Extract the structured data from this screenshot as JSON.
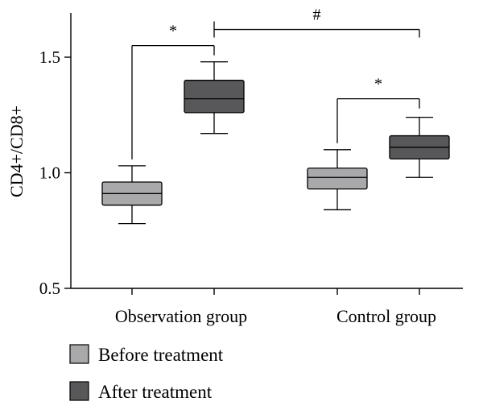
{
  "chart_data": {
    "type": "box",
    "ylabel": "CD4+/CD8+",
    "ylim": [
      0.5,
      1.7
    ],
    "yticks": [
      0.5,
      1.0,
      1.5
    ],
    "ytick_labels": [
      "0.5",
      "1.0",
      "1.5"
    ],
    "categories": [
      "Observation group",
      "Control group"
    ],
    "legend_position": "bottom-left",
    "series": [
      {
        "name": "Before treatment",
        "color": "#a9a9ab",
        "boxes": [
          {
            "whisker_low": 0.78,
            "q1": 0.86,
            "median": 0.91,
            "q3": 0.96,
            "whisker_high": 1.03
          },
          {
            "whisker_low": 0.84,
            "q1": 0.93,
            "median": 0.98,
            "q3": 1.02,
            "whisker_high": 1.1
          }
        ]
      },
      {
        "name": "After treatment",
        "color": "#58585a",
        "boxes": [
          {
            "whisker_low": 1.17,
            "q1": 1.26,
            "median": 1.32,
            "q3": 1.4,
            "whisker_high": 1.48
          },
          {
            "whisker_low": 0.98,
            "q1": 1.06,
            "median": 1.11,
            "q3": 1.16,
            "whisker_high": 1.24
          }
        ]
      }
    ],
    "annotations": [
      {
        "label": "*",
        "from": {
          "category": 0,
          "series": 0
        },
        "to": {
          "category": 0,
          "series": 1
        },
        "y": 1.55
      },
      {
        "label": "#",
        "from": {
          "category": 0,
          "series": 1
        },
        "to": {
          "category": 1,
          "series": 1
        },
        "y": 1.62
      },
      {
        "label": "*",
        "from": {
          "category": 1,
          "series": 0
        },
        "to": {
          "category": 1,
          "series": 1
        },
        "y": 1.32
      }
    ]
  }
}
